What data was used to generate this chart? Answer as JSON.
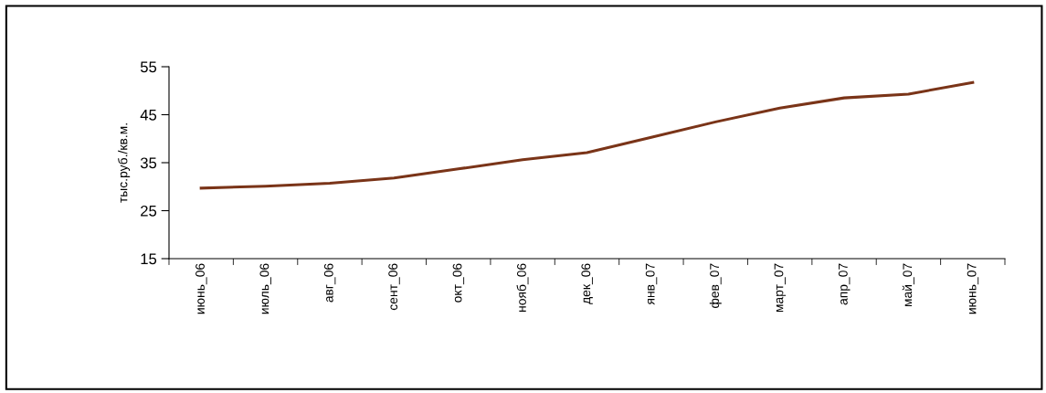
{
  "chart_data": {
    "type": "line",
    "ylabel": "тыс.руб./кв.м.",
    "categories": [
      "июнь_06",
      "июль_06",
      "авг_06",
      "сент_06",
      "окт_06",
      "нояб_06",
      "дек_06",
      "янв_07",
      "фев_07",
      "март_07",
      "апр_07",
      "май_07",
      "июнь_07"
    ],
    "series": [
      {
        "color": "#7a3418",
        "values": [
          29.7,
          30.1,
          30.7,
          31.8,
          33.7,
          35.6,
          37.1,
          40.3,
          43.5,
          46.4,
          48.5,
          49.3,
          51.7
        ]
      }
    ],
    "ylim": [
      15,
      55
    ],
    "yticks": [
      15,
      25,
      35,
      45,
      55
    ],
    "grid": false,
    "legend": false,
    "marker": "none",
    "line_style": "solid"
  }
}
